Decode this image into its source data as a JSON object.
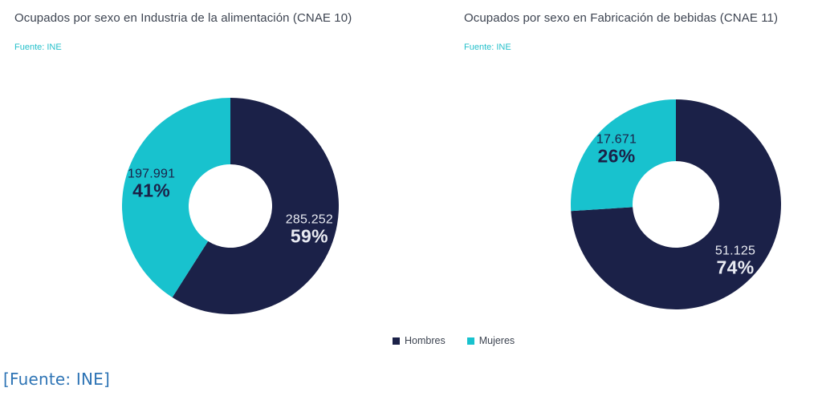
{
  "chart_data": [
    {
      "type": "pie",
      "subtype": "donut",
      "title": "Ocupados por sexo en Industria de la alimentación (CNAE 10)",
      "source": "Fuente: INE",
      "legend_position": "bottom",
      "start_angle_deg": 0,
      "direction": "clockwise",
      "slices": [
        {
          "label": "Hombres",
          "value": 285252,
          "value_label": "285.252",
          "pct": 59,
          "pct_label": "59%",
          "color": "#1b2148",
          "text_color": "#e9ebf2"
        },
        {
          "label": "Mujeres",
          "value": 197991,
          "value_label": "197.991",
          "pct": 41,
          "pct_label": "41%",
          "color": "#18c2ce",
          "text_color": "#1b2148"
        }
      ]
    },
    {
      "type": "pie",
      "subtype": "donut",
      "title": "Ocupados por sexo en Fabricación de bebidas (CNAE 11)",
      "source": "Fuente: INE",
      "legend_position": "bottom",
      "start_angle_deg": 0,
      "direction": "clockwise",
      "slices": [
        {
          "label": "Hombres",
          "value": 51125,
          "value_label": "51.125",
          "pct": 74,
          "pct_label": "74%",
          "color": "#1b2148",
          "text_color": "#e9ebf2"
        },
        {
          "label": "Mujeres",
          "value": 17671,
          "value_label": "17.671",
          "pct": 26,
          "pct_label": "26%",
          "color": "#18c2ce",
          "text_color": "#1b2148"
        }
      ]
    }
  ],
  "legend": {
    "items": [
      {
        "label": "Hombres",
        "color": "#1b2148"
      },
      {
        "label": "Mujeres",
        "color": "#18c2ce"
      }
    ]
  },
  "footer": {
    "text": "[Fuente: INE]"
  },
  "colors": {
    "hombres": "#1b2148",
    "mujeres": "#18c2ce",
    "title_text": "#3d4451",
    "source_text": "#26c0cb",
    "footer_text": "#2e74b5",
    "background": "#ffffff"
  }
}
